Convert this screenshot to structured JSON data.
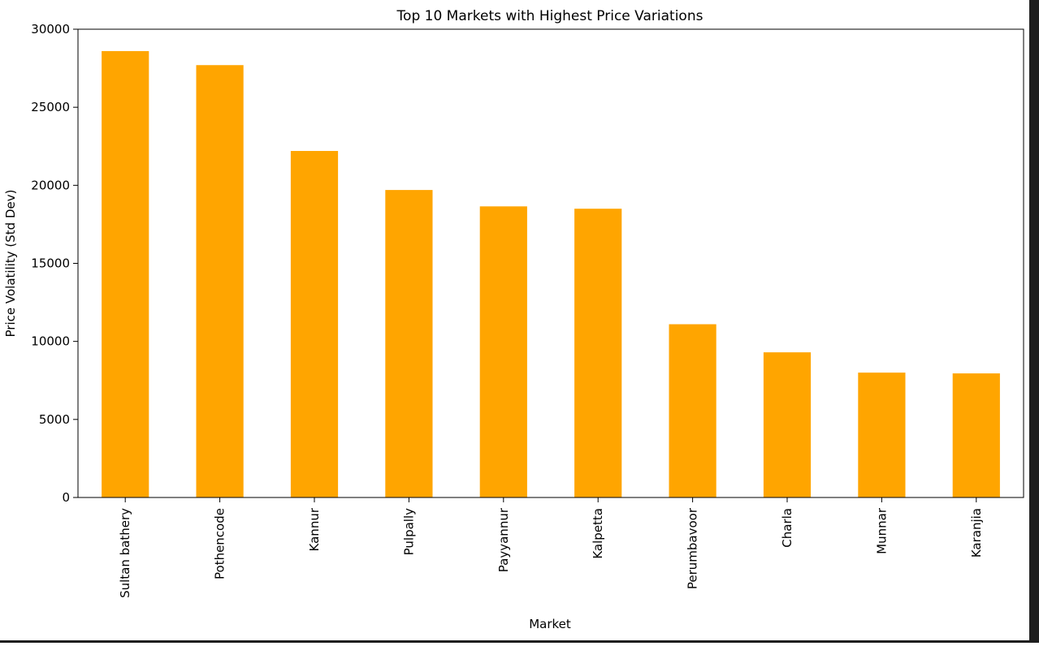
{
  "chart_data": {
    "type": "bar",
    "title": "Top 10 Markets with Highest Price Variations",
    "xlabel": "Market",
    "ylabel": "Price Volatility (Std Dev)",
    "categories": [
      "Sultan bathery",
      "Pothencode",
      "Kannur",
      "Pulpally",
      "Payyannur",
      "Kalpetta",
      "Perumbavoor",
      "Charla",
      "Munnar",
      "Karanjia"
    ],
    "values": [
      28600,
      27700,
      22200,
      19700,
      18650,
      18500,
      11100,
      9300,
      8000,
      7950
    ],
    "ylim": [
      0,
      30000
    ],
    "yticks": [
      0,
      5000,
      10000,
      15000,
      20000,
      25000,
      30000
    ],
    "ytick_labels": [
      "0",
      "5000",
      "10000",
      "15000",
      "20000",
      "25000",
      "30000"
    ],
    "bar_color": "#ffa500",
    "grid": false,
    "legend": "none"
  }
}
